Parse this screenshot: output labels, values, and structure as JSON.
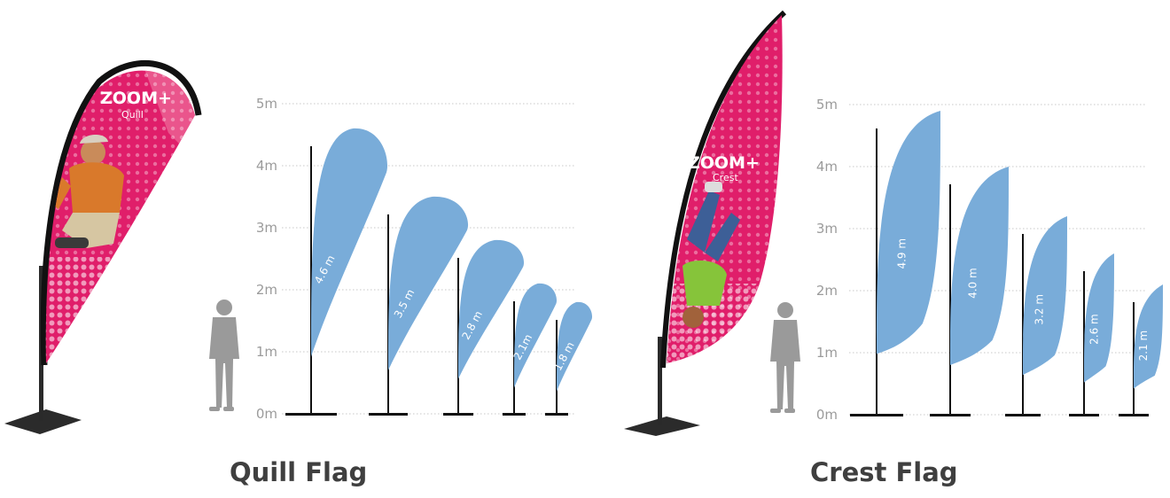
{
  "colors": {
    "flag_blue": "#79acd9",
    "magenta": "#e01e6a",
    "grid": "#c8c8c8",
    "pole": "#111111"
  },
  "scale_ticks": [
    "0m",
    "1m",
    "2m",
    "3m",
    "4m",
    "5m"
  ],
  "quill": {
    "caption": "Quill Flag",
    "brand": "ZOOM+",
    "brand_sub": "Quill",
    "flags": [
      {
        "label": "4.6 m",
        "height_m": 4.6
      },
      {
        "label": "3.5 m",
        "height_m": 3.5
      },
      {
        "label": "2.8 m",
        "height_m": 2.8
      },
      {
        "label": "2.1m",
        "height_m": 2.1
      },
      {
        "label": "1.8 m",
        "height_m": 1.8
      }
    ]
  },
  "crest": {
    "caption": "Crest Flag",
    "brand": "ZOOM+",
    "brand_sub": "Crest",
    "flags": [
      {
        "label": "4.9 m",
        "height_m": 4.9
      },
      {
        "label": "4.0 m",
        "height_m": 4.0
      },
      {
        "label": "3.2 m",
        "height_m": 3.2
      },
      {
        "label": "2.6 m",
        "height_m": 2.6
      },
      {
        "label": "2.1 m",
        "height_m": 2.1
      }
    ]
  }
}
